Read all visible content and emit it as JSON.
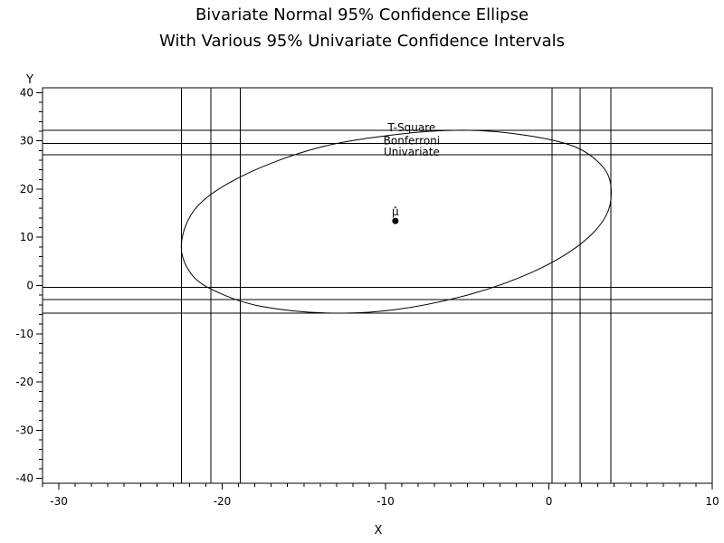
{
  "chart_data": {
    "type": "line",
    "title": [
      "Bivariate Normal 95% Confidence Ellipse",
      "With Various 95% Univariate Confidence Intervals"
    ],
    "xlabel": "X",
    "ylabel": "Y",
    "xlim": [
      -31,
      10
    ],
    "ylim": [
      -41,
      41
    ],
    "xticks": [
      -30,
      -20,
      -10,
      0,
      10
    ],
    "yticks": [
      -40,
      -30,
      -20,
      -10,
      0,
      10,
      20,
      30,
      40
    ],
    "xtick_labels": [
      "-30",
      "-20",
      "-10",
      "0",
      "10"
    ],
    "ytick_labels": [
      "-40",
      "-30",
      "-20",
      "-10",
      "0",
      "10",
      "20",
      "30",
      "40"
    ],
    "grid": false,
    "mean": {
      "x": -9.4,
      "y": 13.4,
      "label": "μ̂"
    },
    "ellipse": {
      "center_x": -9.4,
      "center_y": 13.4,
      "points": [
        [
          3.8,
          20.5
        ],
        [
          3.2,
          25.0
        ],
        [
          1.5,
          28.9
        ],
        [
          -1.5,
          31.2
        ],
        [
          -5.2,
          32.2
        ],
        [
          -9.4,
          31.3
        ],
        [
          -14.2,
          28.5
        ],
        [
          -18.6,
          23.0
        ],
        [
          -21.5,
          16.5
        ],
        [
          -22.5,
          8.5
        ],
        [
          -21.8,
          2.0
        ],
        [
          -20.0,
          -1.8
        ],
        [
          -17.5,
          -4.4
        ],
        [
          -13.6,
          -5.7
        ],
        [
          -9.4,
          -5.0
        ],
        [
          -4.8,
          -1.8
        ],
        [
          -1.0,
          2.8
        ],
        [
          1.9,
          8.5
        ],
        [
          3.5,
          14.5
        ]
      ]
    },
    "intervals": [
      {
        "name": "T-Square",
        "x_low": -22.5,
        "x_high": 3.8,
        "y_low": -5.7,
        "y_high": 32.2
      },
      {
        "name": "Bonferroni",
        "x_low": -20.7,
        "x_high": 1.9,
        "y_low": -2.9,
        "y_high": 29.5
      },
      {
        "name": "Univariate",
        "x_low": -18.9,
        "x_high": 0.2,
        "y_low": -0.4,
        "y_high": 27.1
      }
    ],
    "annotations": [
      {
        "text": "T-Square",
        "x": -8.4,
        "y": 32.2
      },
      {
        "text": "Bonferroni",
        "x": -8.4,
        "y": 29.5
      },
      {
        "text": "Univariate",
        "x": -8.4,
        "y": 27.1
      }
    ]
  }
}
